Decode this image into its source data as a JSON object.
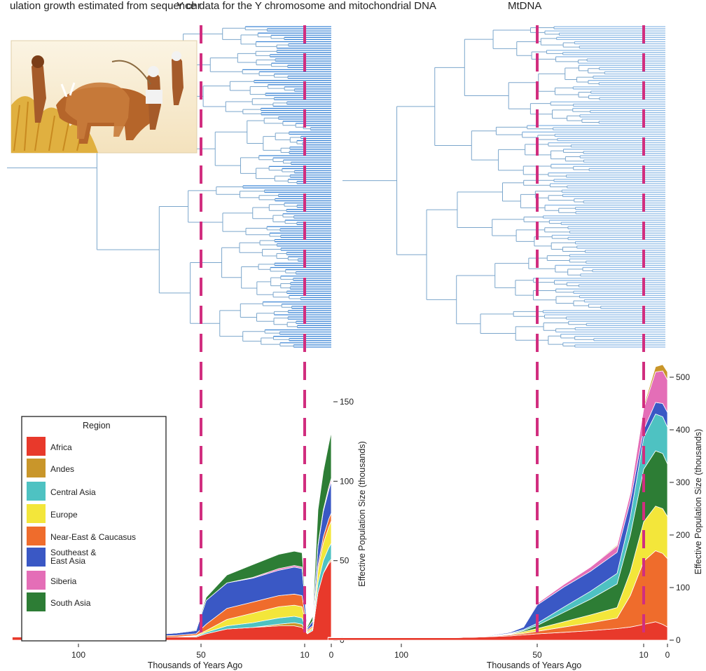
{
  "caption_text": "ulation growth estimated from sequence data for the Y chromosome and mitochondrial DNA",
  "chart_data": [
    {
      "id": "ychr",
      "title": "Y chr",
      "type": "area",
      "stacked": true,
      "x_axis": {
        "label": "Thousands of Years Ago",
        "reversed": true,
        "ticks": [
          100,
          50,
          10,
          0
        ],
        "range": [
          127,
          0
        ]
      },
      "y_axis": {
        "label": "Effective Population Size (thousands)",
        "position": "right",
        "ticks": [
          0,
          50,
          100,
          150
        ],
        "range": [
          0,
          150
        ]
      },
      "event_lines_kya": [
        50,
        10
      ],
      "x": [
        127,
        75,
        70,
        60,
        52,
        48,
        40,
        30,
        20,
        14,
        11,
        9,
        7,
        5,
        3,
        1,
        0
      ],
      "series": [
        {
          "name": "Africa",
          "color": "#e8392b",
          "values": [
            2,
            2,
            2,
            2,
            2,
            4,
            7,
            8,
            9,
            9,
            8,
            4,
            6,
            30,
            42,
            48,
            50
          ]
        },
        {
          "name": "Andes",
          "color": "#c9962a",
          "values": [
            0,
            0,
            0,
            0,
            0,
            0,
            0,
            0,
            1,
            2,
            2,
            0,
            0,
            0,
            0,
            1,
            1
          ]
        },
        {
          "name": "Central Asia",
          "color": "#4ec2c2",
          "values": [
            0,
            0,
            0,
            0,
            0.5,
            1,
            2,
            3,
            4,
            4,
            4,
            0.5,
            1,
            6,
            8,
            9,
            10
          ]
        },
        {
          "name": "Europe",
          "color": "#f3e63a",
          "values": [
            0,
            0,
            0,
            0,
            0.5,
            1,
            4,
            6,
            7,
            7,
            7,
            1,
            1,
            8,
            11,
            13,
            14
          ]
        },
        {
          "name": "Near-East & Caucasus",
          "color": "#ef6c2c",
          "values": [
            0,
            0,
            0.5,
            1,
            1,
            4,
            7,
            7,
            7,
            7,
            7,
            1,
            1,
            3,
            4,
            5,
            5
          ]
        },
        {
          "name": "Southeast & East Asia",
          "color": "#3a58c5",
          "values": [
            0,
            0.5,
            1,
            1.5,
            2,
            15,
            16,
            15,
            16,
            17,
            17,
            1,
            3,
            12,
            16,
            18,
            20
          ]
        },
        {
          "name": "Siberia",
          "color": "#e46eb7",
          "values": [
            0,
            0,
            0,
            0,
            0,
            0,
            0,
            0.5,
            1,
            1,
            1,
            0,
            0,
            1,
            1,
            2,
            2
          ]
        },
        {
          "name": "South Asia",
          "color": "#2d7d35",
          "values": [
            0,
            0,
            0,
            0,
            0.5,
            2,
            5,
            8,
            9,
            9,
            9,
            1,
            3,
            22,
            24,
            27,
            29
          ]
        }
      ]
    },
    {
      "id": "mtdna",
      "title": "MtDNA",
      "type": "area",
      "stacked": true,
      "x_axis": {
        "label": "Thousands of Years Ago",
        "reversed": true,
        "ticks": [
          100,
          50,
          10,
          0
        ],
        "range": [
          127,
          0
        ]
      },
      "y_axis": {
        "label": "Effective Population Size (thousands)",
        "position": "right",
        "ticks": [
          0,
          100,
          200,
          300,
          400,
          500
        ],
        "range": [
          0,
          520
        ]
      },
      "event_lines_kya": [
        50,
        10
      ],
      "x": [
        127,
        80,
        70,
        60,
        55,
        50,
        40,
        30,
        20,
        15,
        10,
        5,
        2,
        0
      ],
      "series": [
        {
          "name": "Africa",
          "color": "#e8392b",
          "values": [
            5,
            5,
            6,
            8,
            10,
            12,
            15,
            18,
            22,
            25,
            30,
            35,
            30,
            25
          ]
        },
        {
          "name": "Near-East & Caucasus",
          "color": "#ef6c2c",
          "values": [
            0,
            0,
            0,
            2,
            3,
            5,
            10,
            15,
            20,
            60,
            120,
            135,
            135,
            130
          ]
        },
        {
          "name": "Europe",
          "color": "#f3e63a",
          "values": [
            0,
            0,
            0,
            1,
            3,
            5,
            10,
            15,
            20,
            45,
            75,
            85,
            85,
            80
          ]
        },
        {
          "name": "South Asia",
          "color": "#2d7d35",
          "values": [
            0,
            0,
            0,
            1,
            2,
            6,
            18,
            30,
            45,
            70,
            100,
            105,
            105,
            100
          ]
        },
        {
          "name": "Central Asia",
          "color": "#4ec2c2",
          "values": [
            0,
            0,
            0,
            1,
            2,
            4,
            10,
            15,
            20,
            35,
            60,
            70,
            70,
            70
          ]
        },
        {
          "name": "Southeast & East Asia",
          "color": "#3a58c5",
          "values": [
            0,
            0,
            1,
            2,
            5,
            35,
            38,
            38,
            40,
            30,
            15,
            22,
            25,
            28
          ]
        },
        {
          "name": "Siberia",
          "color": "#e46eb7",
          "values": [
            0,
            0,
            0,
            0.5,
            1,
            3,
            5,
            8,
            12,
            15,
            40,
            58,
            62,
            62
          ]
        },
        {
          "name": "Andes",
          "color": "#c9962a",
          "values": [
            0,
            0,
            0,
            0,
            0,
            0.5,
            1,
            1,
            2,
            3,
            5,
            10,
            12,
            15
          ]
        }
      ]
    }
  ],
  "legend": {
    "title": "Region",
    "items": [
      {
        "label": "Africa",
        "color": "#e8392b"
      },
      {
        "label": "Andes",
        "color": "#c9962a"
      },
      {
        "label": "Central Asia",
        "color": "#4ec2c2"
      },
      {
        "label": "Europe",
        "color": "#f3e63a"
      },
      {
        "label": "Near-East & Caucasus",
        "color": "#ef6c2c"
      },
      {
        "label": "Southeast &\nEast Asia",
        "color": "#3a58c5"
      },
      {
        "label": "Siberia",
        "color": "#e46eb7"
      },
      {
        "label": "South Asia",
        "color": "#2d7d35"
      }
    ]
  },
  "colors": {
    "event_line": "#d12e7f",
    "tree_line": "#7ba6cc",
    "tree_tips": "#3d86d6",
    "axis": "#222222"
  },
  "icons": {
    "inset_image": "egyptian-farmers-plowing-painting-icon"
  }
}
